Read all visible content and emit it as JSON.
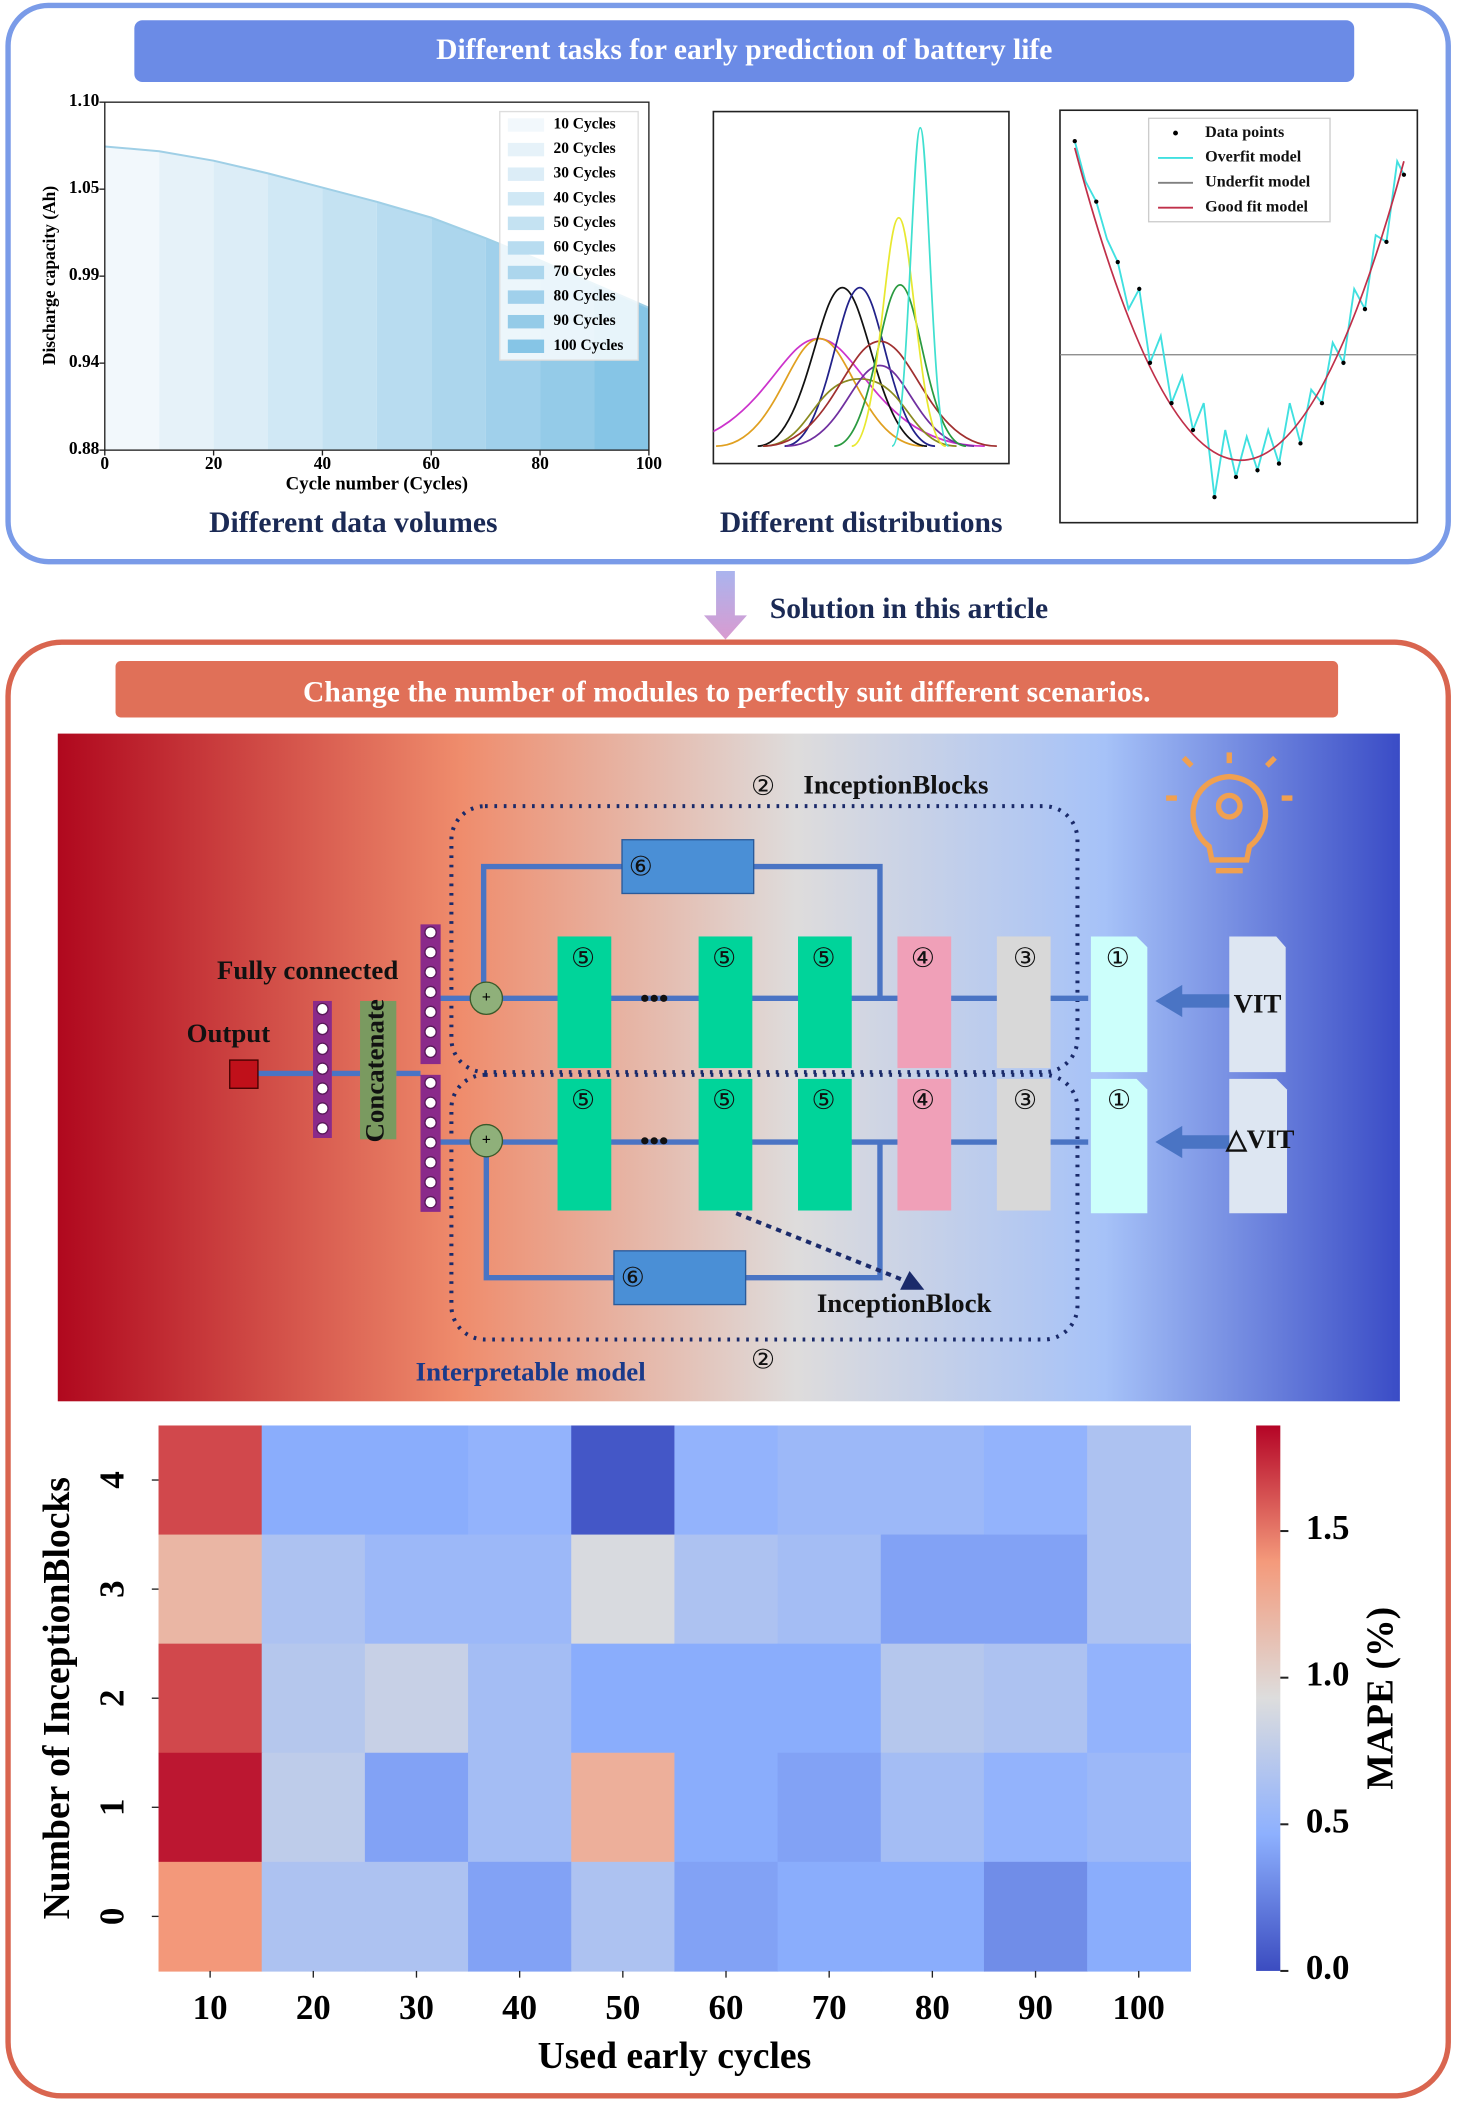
{
  "header": {
    "title": "Different tasks for early prediction of battery life",
    "captions": [
      "Different data volumes",
      "Different distributions"
    ]
  },
  "solution_label": "Solution in this article",
  "panel": {
    "title": "Change the number of modules to perfectly suit different scenarios.",
    "diagram": {
      "inception_blocks": "InceptionBlocks",
      "inception_block": "InceptionBlock",
      "fully_connected": "Fully connected",
      "output": "Output",
      "concatenate": "Concatenate",
      "inputs": [
        "VIT",
        "△VIT"
      ],
      "interpretable_model": "Interpretable model",
      "ellipsis": "•••",
      "module_numbers": [
        "①",
        "②",
        "③",
        "④",
        "⑤",
        "⑥"
      ]
    }
  },
  "fit_chart": {
    "legend": [
      {
        "name": "Data points",
        "color": "#000000",
        "marker": "dot"
      },
      {
        "name": "Overfit model",
        "color": "#40e0e0",
        "marker": "line"
      },
      {
        "name": "Underfit model",
        "color": "#808080",
        "marker": "line"
      },
      {
        "name": "Good fit model",
        "color": "#c0304a",
        "marker": "line"
      }
    ]
  },
  "chart_data": [
    {
      "type": "area",
      "x": [
        0,
        10,
        20,
        30,
        40,
        50,
        60,
        70,
        80,
        90,
        100
      ],
      "values": [
        1.072,
        1.069,
        1.063,
        1.055,
        1.046,
        1.037,
        1.027,
        1.014,
        1.0,
        0.985,
        0.97
      ],
      "xlabel": "Cycle number (Cycles)",
      "ylabel": "Discharge capacity (Ah)",
      "xlim": [
        0,
        100
      ],
      "ylim": [
        0.88,
        1.1
      ],
      "xticks": [
        0,
        20,
        40,
        60,
        80,
        100
      ],
      "yticks": [
        0.88,
        {
          "value": 0.935,
          "label": "0.94"
        },
        0.99,
        {
          "value": 1.045,
          "label": "1.05"
        },
        {
          "value": 1.1,
          "label": "1.10"
        }
      ],
      "line_color": "#9fcfe6",
      "bands": [
        {
          "name": "10 Cycles",
          "color": "#f2f8fc"
        },
        {
          "name": "20 Cycles",
          "color": "#e6f2f9"
        },
        {
          "name": "30 Cycles",
          "color": "#dcedf7"
        },
        {
          "name": "40 Cycles",
          "color": "#d0e8f5"
        },
        {
          "name": "50 Cycles",
          "color": "#c4e2f2"
        },
        {
          "name": "60 Cycles",
          "color": "#b8dcf0"
        },
        {
          "name": "70 Cycles",
          "color": "#acd6ed"
        },
        {
          "name": "80 Cycles",
          "color": "#a0d0eb"
        },
        {
          "name": "90 Cycles",
          "color": "#94cbe8"
        },
        {
          "name": "100 Cycles",
          "color": "#86c5e6"
        }
      ]
    },
    {
      "type": "heatmap",
      "x": [
        10,
        20,
        30,
        40,
        50,
        60,
        70,
        80,
        90,
        100
      ],
      "y": [
        4,
        3,
        2,
        1,
        0
      ],
      "xlim": [
        5,
        105
      ],
      "ylim": [
        -0.5,
        4.5
      ],
      "values": [
        [
          1.65,
          0.45,
          0.45,
          0.5,
          0.05,
          0.5,
          0.55,
          0.55,
          0.5,
          0.65
        ],
        [
          1.2,
          0.65,
          0.55,
          0.55,
          0.9,
          0.65,
          0.6,
          0.4,
          0.4,
          0.65
        ],
        [
          1.65,
          0.7,
          0.8,
          0.6,
          0.45,
          0.45,
          0.45,
          0.7,
          0.65,
          0.5
        ],
        [
          1.8,
          0.75,
          0.4,
          0.6,
          1.25,
          0.45,
          0.4,
          0.6,
          0.5,
          0.55
        ],
        [
          1.4,
          0.65,
          0.65,
          0.4,
          0.65,
          0.4,
          0.45,
          0.45,
          0.3,
          0.45
        ]
      ],
      "xlabel": "Used early cycles",
      "ylabel": "Number of InceptionBlocks",
      "colorbar_label": "MAPE (%)",
      "clim": [
        0,
        1.86
      ],
      "cticks": [
        {
          "value": 0,
          "label": "0.0"
        },
        0.5,
        {
          "value": 1,
          "label": "1.0"
        },
        1.5
      ],
      "colormap": "coolwarm"
    }
  ]
}
